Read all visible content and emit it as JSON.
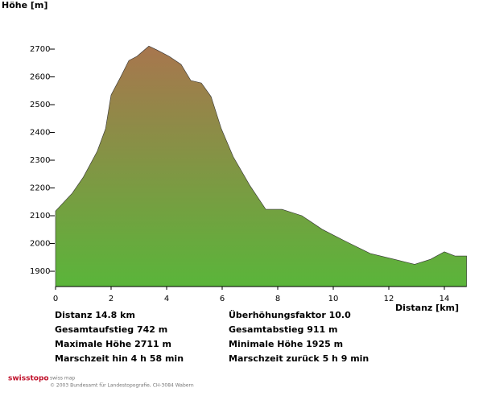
{
  "chart_data": {
    "type": "area",
    "y_label": "Höhe [m]",
    "x_label": "Distanz [km]",
    "x": [
      0,
      0.6,
      1.0,
      1.5,
      1.8,
      2.0,
      2.35,
      2.64,
      2.93,
      3.36,
      3.65,
      4.09,
      4.52,
      4.87,
      5.25,
      5.6,
      5.97,
      6.4,
      6.99,
      7.57,
      8.15,
      8.87,
      9.6,
      10.46,
      11.33,
      12.2,
      12.93,
      13.5,
      14.0,
      14.38,
      14.8
    ],
    "values": [
      2117,
      2181,
      2239,
      2332,
      2413,
      2535,
      2601,
      2659,
      2674,
      2711,
      2697,
      2674,
      2645,
      2587,
      2578,
      2529,
      2413,
      2312,
      2210,
      2123,
      2123,
      2100,
      2051,
      2007,
      1964,
      1943,
      1925,
      1943,
      1970,
      1955,
      1955
    ],
    "color_top": "#a8764e",
    "color_bottom": "#5ab53a",
    "xlim": [
      0,
      14.8
    ],
    "xticks": [
      0,
      2,
      4,
      6,
      8,
      10,
      12,
      14
    ],
    "ylim": [
      1845,
      2745
    ],
    "yticks": [
      1900,
      2000,
      2100,
      2200,
      2300,
      2400,
      2500,
      2600,
      2700
    ],
    "stats": [
      "Distanz 14.8 km",
      "Überhöhungsfaktor 10.0",
      "Gesamtaufstieg  742 m",
      "Gesamtabstieg  911 m",
      "Maximale Höhe  2711 m",
      "Minimale Höhe  1925 m",
      "Marschzeit hin  4 h 58 min",
      "Marschzeit zurück  5 h 9 min"
    ],
    "brand": "swisstopo",
    "brand_sub": "swiss map",
    "copyright": "© 2003 Bundesamt für Landestopografie, CH-3084 Wabern"
  }
}
